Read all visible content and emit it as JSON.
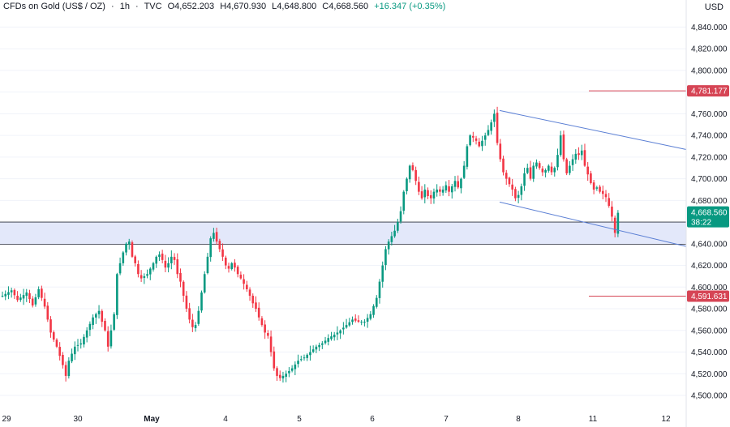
{
  "header": {
    "symbol": "CFDs on Gold (US$ / OZ)",
    "interval": "1h",
    "source": "TVC",
    "open": "O4,652.203",
    "high": "H4,670.930",
    "low": "L4,648.800",
    "close": "C4,668.560",
    "change": "+16.347 (+0.35%)",
    "separator": "·"
  },
  "currency": "USD",
  "colors": {
    "up": "#089981",
    "down": "#f23645",
    "zone_fill": "#e3e8fa",
    "zone_line": "#2a2e39",
    "channel": "#5b7fd4",
    "level": "#d64555",
    "price_badge": "#089981"
  },
  "chart_data": {
    "type": "candlestick",
    "y_ticks": [
      "4,840.000",
      "4,820.000",
      "4,800.000",
      "4,780.000",
      "4,760.000",
      "4,740.000",
      "4,720.000",
      "4,700.000",
      "4,680.000",
      "4,660.000",
      "4,640.000",
      "4,620.000",
      "4,600.000",
      "4,580.000",
      "4,560.000",
      "4,540.000",
      "4,520.000",
      "4,500.000"
    ],
    "x_ticks": [
      "29",
      "30",
      "May",
      "4",
      "5",
      "6",
      "7",
      "8",
      "11",
      "12"
    ],
    "ylim": [
      4492,
      4856
    ],
    "zone": [
      4639.5,
      4660
    ],
    "levels": [
      {
        "value": 4781.177,
        "label": "4,781.177"
      },
      {
        "value": 4591.631,
        "label": "4,591.631"
      }
    ],
    "channel": {
      "upper": [
        [
          0.0,
          4763.0
        ],
        [
          1.0,
          4727.0
        ]
      ],
      "lower": [
        [
          0.0,
          4678.5
        ],
        [
          1.0,
          4637.5
        ]
      ]
    },
    "last_price": {
      "value": 4668.56,
      "label": "4,668.560",
      "countdown": "38:22"
    },
    "anchors": [
      [
        0,
        4592
      ],
      [
        3,
        4597
      ],
      [
        5,
        4588
      ],
      [
        8,
        4595
      ],
      [
        10,
        4583
      ],
      [
        12,
        4598
      ],
      [
        14,
        4582
      ],
      [
        16,
        4558
      ],
      [
        18,
        4545
      ],
      [
        20,
        4528
      ],
      [
        21,
        4518
      ],
      [
        22,
        4532
      ],
      [
        24,
        4545
      ],
      [
        26,
        4548
      ],
      [
        28,
        4560
      ],
      [
        30,
        4572
      ],
      [
        32,
        4578
      ],
      [
        33,
        4568
      ],
      [
        34,
        4560
      ],
      [
        35,
        4545
      ],
      [
        37,
        4575
      ],
      [
        38,
        4612
      ],
      [
        40,
        4632
      ],
      [
        41,
        4640
      ],
      [
        42,
        4642
      ],
      [
        43,
        4628
      ],
      [
        44,
        4622
      ],
      [
        45,
        4612
      ],
      [
        46,
        4608
      ],
      [
        48,
        4612
      ],
      [
        50,
        4622
      ],
      [
        51,
        4628
      ],
      [
        52,
        4630
      ],
      [
        53,
        4625
      ],
      [
        54,
        4618
      ],
      [
        55,
        4622
      ],
      [
        56,
        4628
      ],
      [
        57,
        4625
      ],
      [
        58,
        4612
      ],
      [
        59,
        4605
      ],
      [
        60,
        4592
      ],
      [
        61,
        4580
      ],
      [
        62,
        4570
      ],
      [
        63,
        4563
      ],
      [
        64,
        4565
      ],
      [
        65,
        4578
      ],
      [
        66,
        4595
      ],
      [
        67,
        4612
      ],
      [
        68,
        4628
      ],
      [
        69,
        4645
      ],
      [
        70,
        4650
      ],
      [
        71,
        4642
      ],
      [
        72,
        4635
      ],
      [
        73,
        4628
      ],
      [
        74,
        4620
      ],
      [
        75,
        4617
      ],
      [
        76,
        4622
      ],
      [
        77,
        4618
      ],
      [
        78,
        4612
      ],
      [
        79,
        4608
      ],
      [
        80,
        4603
      ],
      [
        81,
        4598
      ],
      [
        82,
        4592
      ],
      [
        83,
        4585
      ],
      [
        84,
        4580
      ],
      [
        85,
        4572
      ],
      [
        86,
        4565
      ],
      [
        87,
        4558
      ],
      [
        88,
        4555
      ],
      [
        89,
        4540
      ],
      [
        90,
        4525
      ],
      [
        91,
        4518
      ],
      [
        92,
        4516
      ],
      [
        94,
        4520
      ],
      [
        96,
        4525
      ],
      [
        98,
        4532
      ],
      [
        100,
        4535
      ],
      [
        102,
        4540
      ],
      [
        104,
        4545
      ],
      [
        106,
        4548
      ],
      [
        108,
        4553
      ],
      [
        110,
        4556
      ],
      [
        112,
        4560
      ],
      [
        114,
        4565
      ],
      [
        116,
        4570
      ],
      [
        118,
        4568
      ],
      [
        120,
        4568
      ],
      [
        122,
        4575
      ],
      [
        124,
        4590
      ],
      [
        125,
        4605
      ],
      [
        126,
        4620
      ],
      [
        127,
        4635
      ],
      [
        128,
        4642
      ],
      [
        129,
        4647
      ],
      [
        130,
        4652
      ],
      [
        131,
        4660
      ],
      [
        132,
        4670
      ],
      [
        133,
        4688
      ],
      [
        134,
        4700
      ],
      [
        135,
        4712
      ],
      [
        136,
        4708
      ],
      [
        137,
        4698
      ],
      [
        138,
        4688
      ],
      [
        139,
        4682
      ],
      [
        140,
        4690
      ],
      [
        141,
        4684
      ],
      [
        142,
        4682
      ],
      [
        143,
        4688
      ],
      [
        144,
        4690
      ],
      [
        145,
        4688
      ],
      [
        146,
        4690
      ],
      [
        147,
        4694
      ],
      [
        148,
        4688
      ],
      [
        149,
        4693
      ],
      [
        150,
        4698
      ],
      [
        151,
        4692
      ],
      [
        152,
        4700
      ],
      [
        153,
        4712
      ],
      [
        154,
        4730
      ],
      [
        155,
        4740
      ],
      [
        156,
        4738
      ],
      [
        157,
        4735
      ],
      [
        158,
        4730
      ],
      [
        159,
        4735
      ],
      [
        160,
        4740
      ],
      [
        161,
        4745
      ],
      [
        162,
        4752
      ],
      [
        163,
        4760
      ],
      [
        164,
        4733
      ],
      [
        165,
        4718
      ],
      [
        166,
        4706
      ],
      [
        167,
        4700
      ],
      [
        168,
        4695
      ],
      [
        169,
        4690
      ],
      [
        170,
        4682
      ],
      [
        171,
        4685
      ],
      [
        172,
        4693
      ],
      [
        173,
        4705
      ],
      [
        174,
        4710
      ],
      [
        175,
        4700
      ],
      [
        176,
        4712
      ],
      [
        177,
        4715
      ],
      [
        178,
        4710
      ],
      [
        179,
        4706
      ],
      [
        180,
        4708
      ],
      [
        181,
        4712
      ],
      [
        182,
        4706
      ],
      [
        183,
        4710
      ],
      [
        184,
        4722
      ],
      [
        185,
        4740
      ],
      [
        186,
        4718
      ],
      [
        187,
        4705
      ],
      [
        188,
        4712
      ],
      [
        189,
        4718
      ],
      [
        190,
        4723
      ],
      [
        191,
        4722
      ],
      [
        192,
        4726
      ],
      [
        193,
        4712
      ],
      [
        195,
        4696
      ],
      [
        196,
        4690
      ],
      [
        197,
        4692
      ],
      [
        198,
        4688
      ],
      [
        199,
        4686
      ],
      [
        200,
        4683
      ],
      [
        201,
        4675
      ],
      [
        202,
        4665
      ],
      [
        203,
        4650
      ],
      [
        204,
        4668.56
      ]
    ]
  }
}
